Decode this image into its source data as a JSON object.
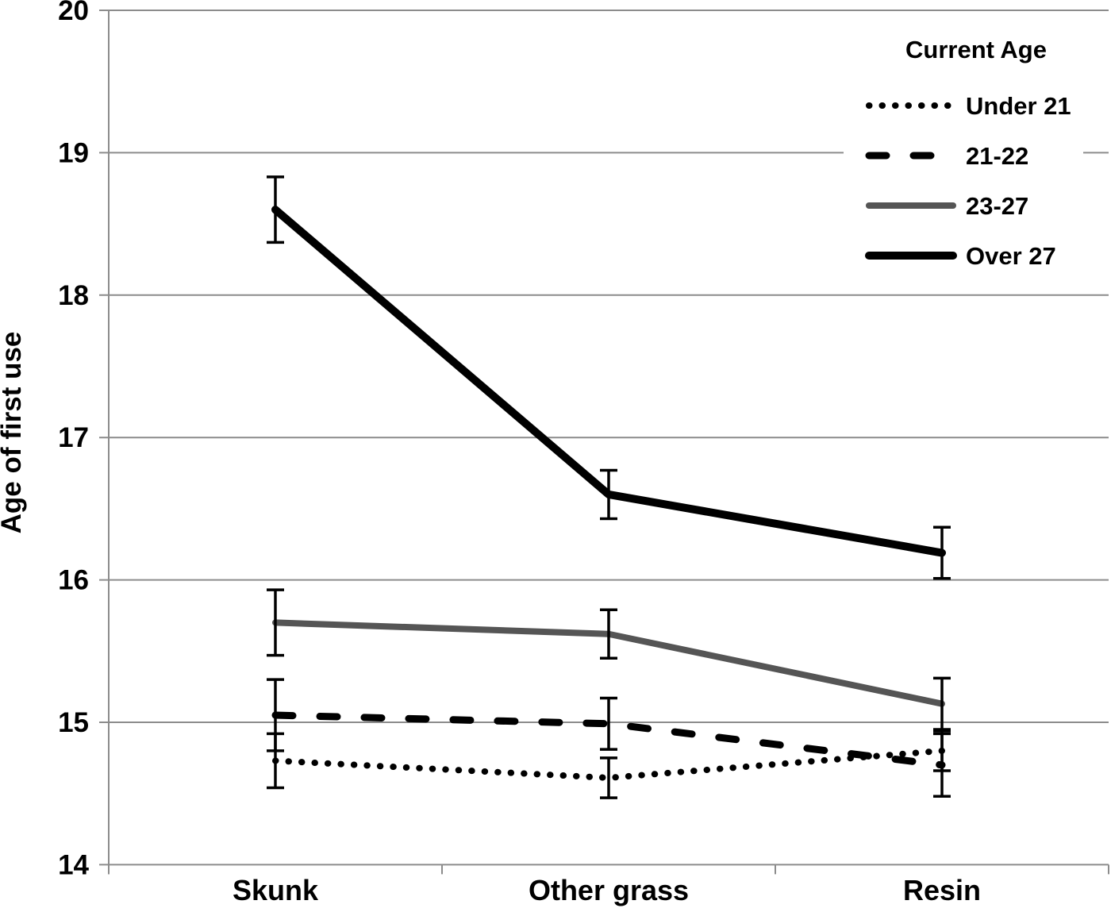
{
  "figure": {
    "background": "#ffffff",
    "axis_color": "#8c8c8c",
    "error_bar_color": "#000000"
  },
  "chart_data": {
    "type": "line",
    "title": "",
    "xlabel": "",
    "ylabel": "Age of first use",
    "categories": [
      "Skunk",
      "Other grass",
      "Resin"
    ],
    "ylim": [
      14,
      20
    ],
    "yticks": [
      14,
      15,
      16,
      17,
      18,
      19,
      20
    ],
    "grid": "horizontal",
    "legend_title": "Current Age",
    "legend_position": "top-right-inside",
    "series": [
      {
        "name": "Under 21",
        "style": "dotted",
        "color": "#000000",
        "width": 8,
        "values": [
          14.73,
          14.61,
          14.8
        ],
        "error": [
          0.19,
          0.14,
          0.14
        ]
      },
      {
        "name": "21-22",
        "style": "dashed",
        "color": "#000000",
        "width": 9,
        "values": [
          15.05,
          14.99,
          14.7
        ],
        "error": [
          0.25,
          0.18,
          0.22
        ]
      },
      {
        "name": "23-27",
        "style": "solid",
        "color": "#555555",
        "width": 8,
        "values": [
          15.7,
          15.62,
          15.13
        ],
        "error": [
          0.23,
          0.17,
          0.18
        ]
      },
      {
        "name": "Over 27",
        "style": "solid",
        "color": "#000000",
        "width": 10,
        "values": [
          18.6,
          16.6,
          16.19
        ],
        "error": [
          0.23,
          0.17,
          0.18
        ]
      }
    ]
  }
}
